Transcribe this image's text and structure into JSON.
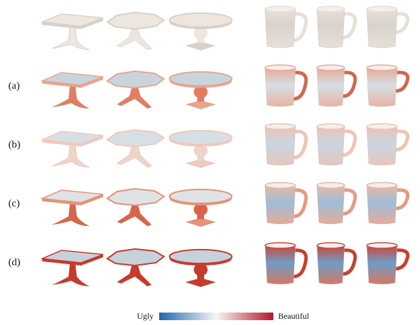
{
  "rows": [
    "(a)",
    "(b)",
    "(c)",
    "(d)"
  ],
  "colorbar": {
    "low": "Ugly",
    "high": "Beautiful"
  }
}
